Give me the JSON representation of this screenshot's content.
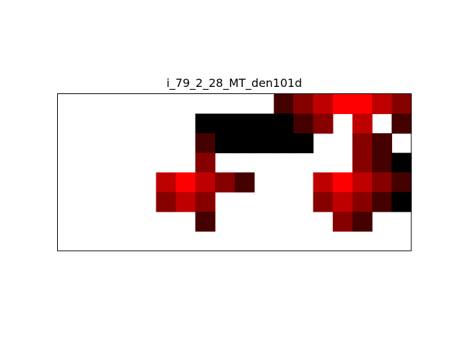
{
  "chart_data": {
    "type": "heatmap",
    "title": "i_79_2_28_MT_den101d",
    "xlabel": "",
    "ylabel": "",
    "grid": false,
    "colormap": "black-red-white (hot-like), higher value = brighter",
    "missing_color": "#ffffff",
    "n_rows": 8,
    "n_cols": 18,
    "rows": [
      [
        null,
        null,
        null,
        null,
        null,
        null,
        null,
        null,
        null,
        null,
        null,
        0.27,
        0.53,
        0.75,
        1.0,
        1.0,
        0.75,
        0.53
      ],
      [
        null,
        null,
        null,
        null,
        null,
        null,
        null,
        0.0,
        0.0,
        0.0,
        0.0,
        0.0,
        0.27,
        0.53,
        null,
        0.75,
        null,
        0.27
      ],
      [
        null,
        null,
        null,
        null,
        null,
        null,
        null,
        0.27,
        0.0,
        0.0,
        0.0,
        0.0,
        0.0,
        null,
        null,
        0.53,
        0.27,
        null
      ],
      [
        null,
        null,
        null,
        null,
        null,
        null,
        null,
        0.53,
        null,
        null,
        null,
        null,
        null,
        null,
        null,
        0.53,
        0.27,
        0.0
      ],
      [
        null,
        null,
        null,
        null,
        null,
        0.75,
        1.0,
        0.75,
        0.53,
        0.27,
        null,
        null,
        null,
        0.75,
        1.0,
        0.75,
        0.53,
        0.27
      ],
      [
        null,
        null,
        null,
        null,
        null,
        0.53,
        0.75,
        0.53,
        null,
        null,
        null,
        null,
        null,
        0.53,
        0.75,
        0.53,
        0.27,
        0.0
      ],
      [
        null,
        null,
        null,
        null,
        null,
        null,
        null,
        0.27,
        null,
        null,
        null,
        null,
        null,
        null,
        0.53,
        0.27,
        null,
        null
      ],
      [
        null,
        null,
        null,
        null,
        null,
        null,
        null,
        null,
        null,
        null,
        null,
        null,
        null,
        null,
        null,
        null,
        null,
        null
      ]
    ]
  }
}
